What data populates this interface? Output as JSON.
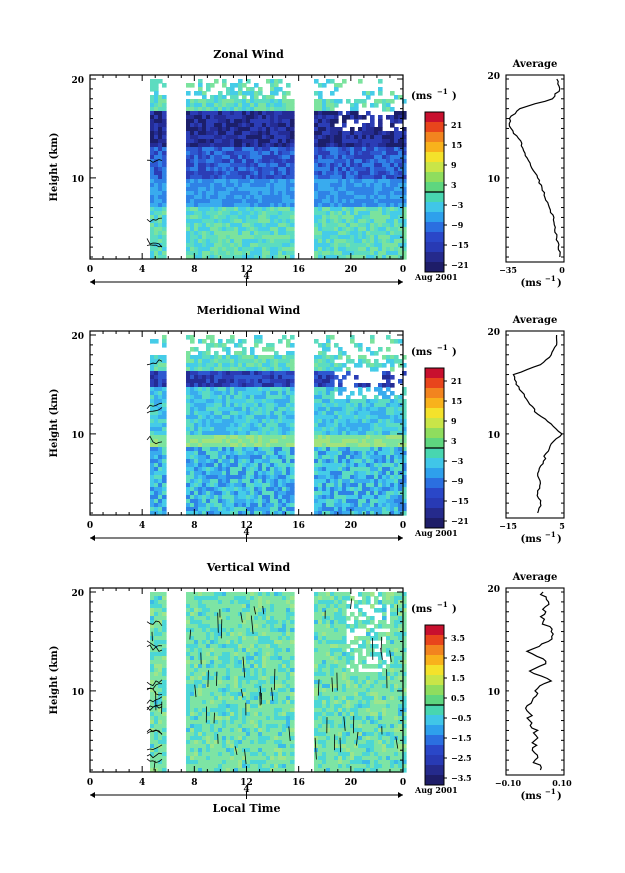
{
  "chart_data": [
    {
      "type": "heatmap",
      "title": "Zonal Wind",
      "ylabel": "Height (km)",
      "yticks": [
        "20",
        "10"
      ],
      "xticks": [
        "0",
        "4",
        "8",
        "12",
        "16",
        "20",
        "0"
      ],
      "date_tick": "4",
      "date_label": "Aug 2001",
      "colorbar": {
        "unit_label": "(ms",
        "unit_exp": "−1",
        "ticks": [
          "21",
          "15",
          "9",
          "3",
          "−3",
          "−9",
          "−15",
          "−21"
        ]
      },
      "average": {
        "title": "Average",
        "ylabel_ticks": [
          "20",
          "10"
        ],
        "xticks": [
          "−35",
          "0"
        ],
        "xlabel": "(ms",
        "xlabel_exp": "−1"
      },
      "profile": {
        "h": [
          2,
          3,
          4,
          5,
          6,
          7,
          8,
          9,
          10,
          11,
          12,
          13,
          14,
          15,
          16,
          17,
          18,
          19,
          20
        ],
        "v": [
          0,
          -1,
          -2,
          -3,
          -4,
          -7,
          -10,
          -12,
          -15,
          -19,
          -22,
          -25,
          -28,
          -33,
          -34,
          -27,
          -5,
          0,
          -2
        ]
      }
    },
    {
      "type": "heatmap",
      "title": "Meridional Wind",
      "ylabel": "Height (km)",
      "yticks": [
        "20",
        "10"
      ],
      "xticks": [
        "0",
        "4",
        "8",
        "12",
        "16",
        "20",
        "0"
      ],
      "date_tick": "4",
      "date_label": "Aug 2001",
      "colorbar": {
        "unit_label": "(ms",
        "unit_exp": "−1",
        "ticks": [
          "21",
          "15",
          "9",
          "3",
          "−3",
          "−9",
          "−15",
          "−21"
        ]
      },
      "average": {
        "title": "Average",
        "ylabel_ticks": [
          "20",
          "10"
        ],
        "xticks": [
          "−15",
          "5"
        ],
        "xlabel": "(ms",
        "xlabel_exp": "−1"
      },
      "profile": {
        "h": [
          2,
          3,
          4,
          5,
          6,
          7,
          8,
          9,
          10,
          11,
          12,
          13,
          14,
          15,
          16,
          17,
          18,
          19,
          20
        ],
        "v": [
          -4,
          -3,
          -4,
          -3,
          -4,
          -2,
          -1,
          1,
          5,
          1,
          -4,
          -7,
          -9,
          -12,
          -13,
          -3,
          1,
          3,
          3
        ]
      }
    },
    {
      "type": "heatmap",
      "title": "Vertical Wind",
      "ylabel": "Height (km)",
      "yticks": [
        "20",
        "10"
      ],
      "xticks": [
        "0",
        "4",
        "8",
        "12",
        "16",
        "20",
        "0"
      ],
      "date_tick": "4",
      "date_label": "Aug 2001",
      "xlabel": "Local Time",
      "colorbar": {
        "unit_label": "(ms",
        "unit_exp": "−1",
        "ticks": [
          "3.5",
          "2.5",
          "1.5",
          "0.5",
          "−0.5",
          "−1.5",
          "−2.5",
          "−3.5"
        ]
      },
      "average": {
        "title": "Average",
        "ylabel_ticks": [
          "20",
          "10"
        ],
        "xticks": [
          "−0.10",
          "0.10"
        ],
        "xlabel": "(ms",
        "xlabel_exp": "−1"
      },
      "profile": {
        "h": [
          2,
          3,
          4,
          5,
          6,
          7,
          8,
          9,
          10,
          11,
          12,
          13,
          14,
          15,
          16,
          17,
          18,
          19,
          20
        ],
        "v": [
          0.02,
          0.0,
          -0.01,
          0.0,
          0.01,
          -0.02,
          -0.03,
          -0.01,
          0.0,
          0.06,
          -0.02,
          0.04,
          -0.03,
          0.05,
          0.06,
          0.03,
          0.04,
          0.05,
          0.03
        ]
      }
    }
  ]
}
